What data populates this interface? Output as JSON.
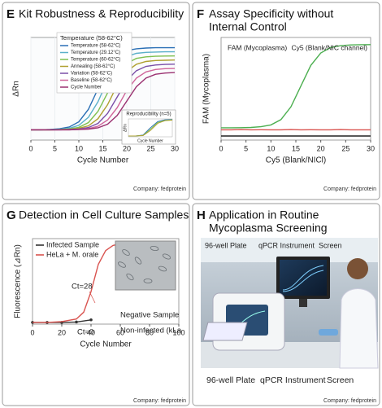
{
  "panels": [
    {
      "letter": "E",
      "title": [
        "Kit Robustness & Reproducibility"
      ],
      "company": "Company: fedprotein"
    },
    {
      "letter": "F",
      "title": [
        "Assay Specificity without",
        "Internal Control"
      ],
      "company": "Company: fedprotein"
    },
    {
      "letter": "G",
      "title": [
        "Detection in Cell Culture Samples"
      ],
      "company": "Company: fedprotein"
    },
    {
      "letter": "H",
      "title": [
        "Application in Routine",
        "Mycoplasma Screening"
      ],
      "company": "Company: fedprotein",
      "photo_labels": [
        "96-well Plate",
        "qPCR Instrument",
        "Screen"
      ],
      "captions": [
        "96-well Plate",
        "qPCR Instrument",
        "Screen"
      ]
    }
  ],
  "chart_data": [
    {
      "type": "line",
      "x_label": "Cycle Number",
      "y_label": "ΔRn",
      "xlim": [
        0,
        30
      ],
      "xticks": [
        0,
        5,
        10,
        15,
        20,
        25,
        30
      ],
      "ylim": [
        0,
        1
      ],
      "legend_title": "Temperature (58-62°C)",
      "x": [
        0,
        2,
        4,
        6,
        8,
        10,
        12,
        14,
        16,
        18,
        20,
        22,
        24,
        26,
        28,
        30
      ],
      "series": [
        {
          "name": "Temperature (58-62°C)",
          "color": "#2a6fb5",
          "values": [
            0.1,
            0.1,
            0.103,
            0.11,
            0.127,
            0.178,
            0.3,
            0.5,
            0.7,
            0.82,
            0.873,
            0.89,
            0.897,
            0.9,
            0.9,
            0.9
          ]
        },
        {
          "name": "Temperature (29.12°C)",
          "color": "#5bb0c9",
          "values": [
            0.1,
            0.1,
            0.102,
            0.105,
            0.115,
            0.144,
            0.222,
            0.374,
            0.586,
            0.738,
            0.814,
            0.845,
            0.855,
            0.858,
            0.86,
            0.86
          ]
        },
        {
          "name": "Temperature (60-62°C)",
          "color": "#7fc04f",
          "values": [
            0.1,
            0.1,
            0.1,
            0.103,
            0.109,
            0.124,
            0.171,
            0.28,
            0.46,
            0.64,
            0.748,
            0.796,
            0.811,
            0.817,
            0.819,
            0.82
          ]
        },
        {
          "name": "Annealing (58-62°C)",
          "color": "#b0a030",
          "values": [
            0.1,
            0.1,
            0.1,
            0.101,
            0.105,
            0.114,
            0.139,
            0.209,
            0.345,
            0.535,
            0.671,
            0.739,
            0.766,
            0.775,
            0.778,
            0.78
          ]
        },
        {
          "name": "Variation (58-62°C)",
          "color": "#7a4fa8",
          "values": [
            0.1,
            0.1,
            0.1,
            0.1,
            0.103,
            0.108,
            0.122,
            0.163,
            0.26,
            0.42,
            0.58,
            0.676,
            0.718,
            0.732,
            0.737,
            0.74
          ]
        },
        {
          "name": "Baseline (58-62°C)",
          "color": "#d0659a",
          "values": [
            0.1,
            0.1,
            0.1,
            0.1,
            0.1,
            0.104,
            0.112,
            0.135,
            0.196,
            0.316,
            0.484,
            0.604,
            0.664,
            0.688,
            0.696,
            0.698
          ]
        },
        {
          "name": "Cycle Number",
          "color": "#9a3070",
          "values": [
            0.1,
            0.1,
            0.1,
            0.1,
            0.1,
            0.102,
            0.107,
            0.119,
            0.155,
            0.24,
            0.38,
            0.52,
            0.604,
            0.641,
            0.653,
            0.658
          ]
        }
      ],
      "inset": {
        "title": "Reproducibility (n=5)",
        "x_label": "Cycle Number",
        "y_label": "ΔRn",
        "xlim": [
          0,
          30
        ],
        "ylim": [
          0,
          1
        ],
        "x": [
          0,
          5,
          10,
          15,
          20,
          25,
          30
        ],
        "series": [
          {
            "color": "#2a6fb5",
            "values": [
              0.05,
              0.05,
              0.1,
              0.5,
              0.85,
              0.95,
              0.97
            ]
          },
          {
            "color": "#7fc04f",
            "values": [
              0.05,
              0.05,
              0.08,
              0.42,
              0.8,
              0.92,
              0.95
            ]
          },
          {
            "color": "#b0a030",
            "values": [
              0.05,
              0.05,
              0.07,
              0.35,
              0.75,
              0.9,
              0.93
            ]
          }
        ]
      }
    },
    {
      "type": "line",
      "x_label": "Cy5 (Blank/NICl)",
      "y_label": "FAM (Mycoplasma)",
      "xlim": [
        0,
        30
      ],
      "xticks": [
        0,
        5,
        10,
        15,
        20,
        25,
        30
      ],
      "ylim": [
        0,
        1
      ],
      "x": [
        0,
        2,
        4,
        6,
        8,
        10,
        12,
        14,
        16,
        18,
        20,
        22,
        24,
        26,
        28,
        30
      ],
      "series": [
        {
          "name": "FAM (Mycoplasma)",
          "color": "#4caf50",
          "values": [
            0.12,
            0.12,
            0.121,
            0.123,
            0.13,
            0.148,
            0.199,
            0.323,
            0.525,
            0.728,
            0.849,
            0.902,
            0.92,
            0.927,
            0.929,
            0.93
          ]
        },
        {
          "name": "Cy5 (Blank/NIC channel)",
          "color": "#d9534f",
          "values": [
            0.1,
            0.1,
            0.102,
            0.1,
            0.101,
            0.1,
            0.1,
            0.102,
            0.1,
            0.101,
            0.1,
            0.1,
            0.102,
            0.1,
            0.1,
            0.1
          ]
        },
        {
          "color": "#222222",
          "values": [
            0.04,
            0.04,
            0.04,
            0.04,
            0.04,
            0.04,
            0.04,
            0.04,
            0.04,
            0.04,
            0.04,
            0.04,
            0.04,
            0.04,
            0.04,
            0.04
          ]
        }
      ]
    },
    {
      "type": "line",
      "x_label": "Cycle Number",
      "y_label": "Fluorescence (⊿Rn)",
      "xlim": [
        0,
        100
      ],
      "xticks": [
        0,
        20,
        40,
        60,
        80,
        100
      ],
      "ylim": [
        0,
        1
      ],
      "series": [
        {
          "name": "Infected Sample",
          "color": "#333333",
          "markers": true,
          "x": [
            0,
            10,
            20,
            30,
            40
          ],
          "values": [
            0.02,
            0.02,
            0.02,
            0.025,
            0.05
          ]
        },
        {
          "name": "HeLa + M. orale",
          "color": "#d9534f",
          "x": [
            0,
            10,
            20,
            30,
            35,
            40,
            45,
            50,
            55,
            60
          ],
          "values": [
            0.02,
            0.02,
            0.03,
            0.06,
            0.14,
            0.38,
            0.7,
            0.86,
            0.92,
            0.94
          ]
        }
      ],
      "annotations": [
        "Ct=28",
        "Ct=0",
        "Negative Sample",
        "Non-infected (kLa"
      ]
    }
  ]
}
